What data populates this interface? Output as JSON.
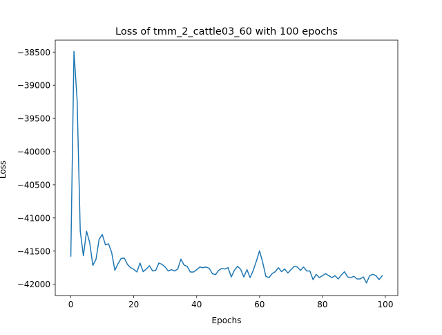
{
  "chart_data": {
    "type": "line",
    "title": "Loss of tmm_2_cattle03_60 with 100 epochs",
    "xlabel": "Epochs",
    "ylabel": "Loss",
    "xlim": [
      -4.95,
      103.95
    ],
    "ylim": [
      -42170,
      -38320
    ],
    "xticks": [
      0,
      20,
      40,
      60,
      80,
      100
    ],
    "xtick_labels": [
      "0",
      "20",
      "40",
      "60",
      "80",
      "100"
    ],
    "yticks": [
      -38500,
      -39000,
      -39500,
      -40000,
      -40500,
      -41000,
      -41500,
      -42000
    ],
    "ytick_labels": [
      "−38500",
      "−39000",
      "−39500",
      "−40000",
      "−40500",
      "−41000",
      "−41500",
      "−42000"
    ],
    "grid": false,
    "legend": "none",
    "line_color": "#1f77b4",
    "series": [
      {
        "x": [
          0,
          1,
          2,
          3,
          4,
          5,
          6,
          7,
          8,
          9,
          10,
          11,
          12,
          13,
          14,
          15,
          16,
          17,
          18,
          19,
          20,
          21,
          22,
          23,
          24,
          25,
          26,
          27,
          28,
          29,
          30,
          31,
          32,
          33,
          34,
          35,
          36,
          37,
          38,
          39,
          40,
          41,
          42,
          43,
          44,
          45,
          46,
          47,
          48,
          49,
          50,
          51,
          52,
          53,
          54,
          55,
          56,
          57,
          58,
          59,
          60,
          61,
          62,
          63,
          64,
          65,
          66,
          67,
          68,
          69,
          70,
          71,
          72,
          73,
          74,
          75,
          76,
          77,
          78,
          79,
          80,
          81,
          82,
          83,
          84,
          85,
          86,
          87,
          88,
          89,
          90,
          91,
          92,
          93,
          94,
          95,
          96,
          97,
          98,
          99
        ],
        "values": [
          -41575,
          -38490,
          -39220,
          -41200,
          -41570,
          -41200,
          -41370,
          -41715,
          -41625,
          -41320,
          -41250,
          -41405,
          -41390,
          -41525,
          -41790,
          -41690,
          -41610,
          -41605,
          -41700,
          -41750,
          -41775,
          -41815,
          -41680,
          -41810,
          -41770,
          -41720,
          -41800,
          -41790,
          -41680,
          -41700,
          -41740,
          -41800,
          -41780,
          -41800,
          -41770,
          -41620,
          -41710,
          -41730,
          -41815,
          -41815,
          -41780,
          -41740,
          -41750,
          -41740,
          -41760,
          -41840,
          -41855,
          -41790,
          -41760,
          -41770,
          -41750,
          -41890,
          -41790,
          -41730,
          -41775,
          -41890,
          -41780,
          -41900,
          -41790,
          -41650,
          -41495,
          -41670,
          -41880,
          -41900,
          -41840,
          -41810,
          -41750,
          -41810,
          -41770,
          -41830,
          -41780,
          -41730,
          -41740,
          -41790,
          -41740,
          -41800,
          -41800,
          -41930,
          -41850,
          -41900,
          -41870,
          -41840,
          -41870,
          -41900,
          -41870,
          -41920,
          -41860,
          -41810,
          -41890,
          -41900,
          -41880,
          -41920,
          -41920,
          -41890,
          -41980,
          -41870,
          -41850,
          -41870,
          -41930,
          -41870
        ]
      }
    ]
  }
}
